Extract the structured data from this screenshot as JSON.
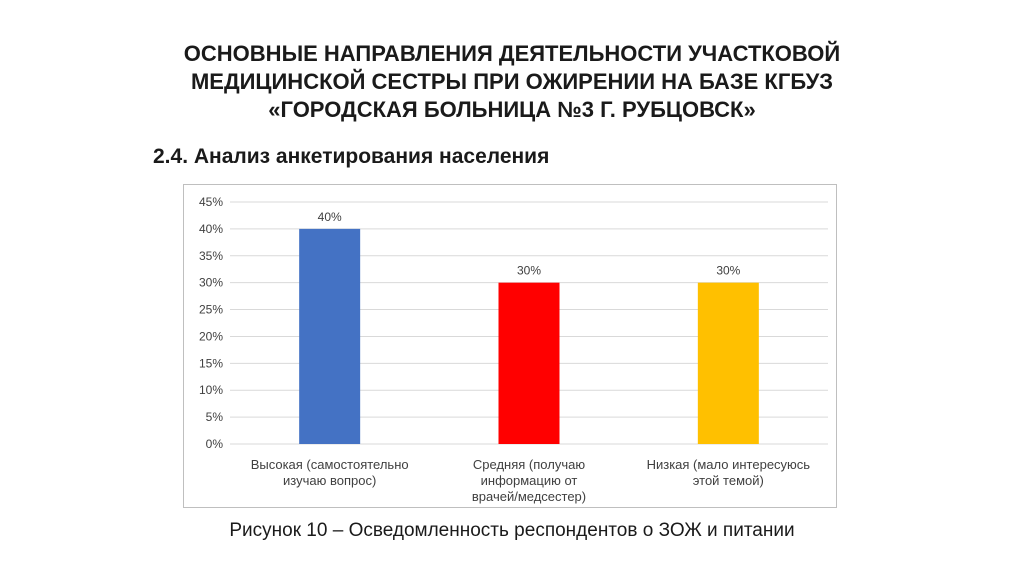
{
  "slide": {
    "title_lines": [
      "ОСНОВНЫЕ НАПРАВЛЕНИЯ ДЕЯТЕЛЬНОСТИ УЧАСТКОВОЙ",
      "МЕДИЦИНСКОЙ СЕСТРЫ ПРИ ОЖИРЕНИИ НА БАЗЕ КГБУЗ",
      "«ГОРОДСКАЯ БОЛЬНИЦА №3 Г. РУБЦОВСК»"
    ],
    "subtitle": "2.4. Анализ анкетирования населения",
    "caption": "Рисунок 10 – Осведомленность респондентов о ЗОЖ и питании"
  },
  "chart_data": {
    "type": "bar",
    "categories": [
      [
        "Высокая (самостоятельно",
        "изучаю вопрос)"
      ],
      [
        "Средняя (получаю",
        "информацию от",
        "врачей/медсестер)"
      ],
      [
        "Низкая (мало интересуюсь",
        "этой темой)"
      ]
    ],
    "values": [
      40,
      30,
      30
    ],
    "data_labels": [
      "40%",
      "30%",
      "30%"
    ],
    "colors": [
      "#4472C4",
      "#FF0000",
      "#FFC000"
    ],
    "ylim": [
      0,
      45
    ],
    "y_ticks": [
      0,
      5,
      10,
      15,
      20,
      25,
      30,
      35,
      40,
      45
    ],
    "y_tick_labels": [
      "0%",
      "5%",
      "10%",
      "15%",
      "20%",
      "25%",
      "30%",
      "35%",
      "40%",
      "45%"
    ],
    "grid": true,
    "legend": "none",
    "title": "",
    "xlabel": "",
    "ylabel": ""
  }
}
